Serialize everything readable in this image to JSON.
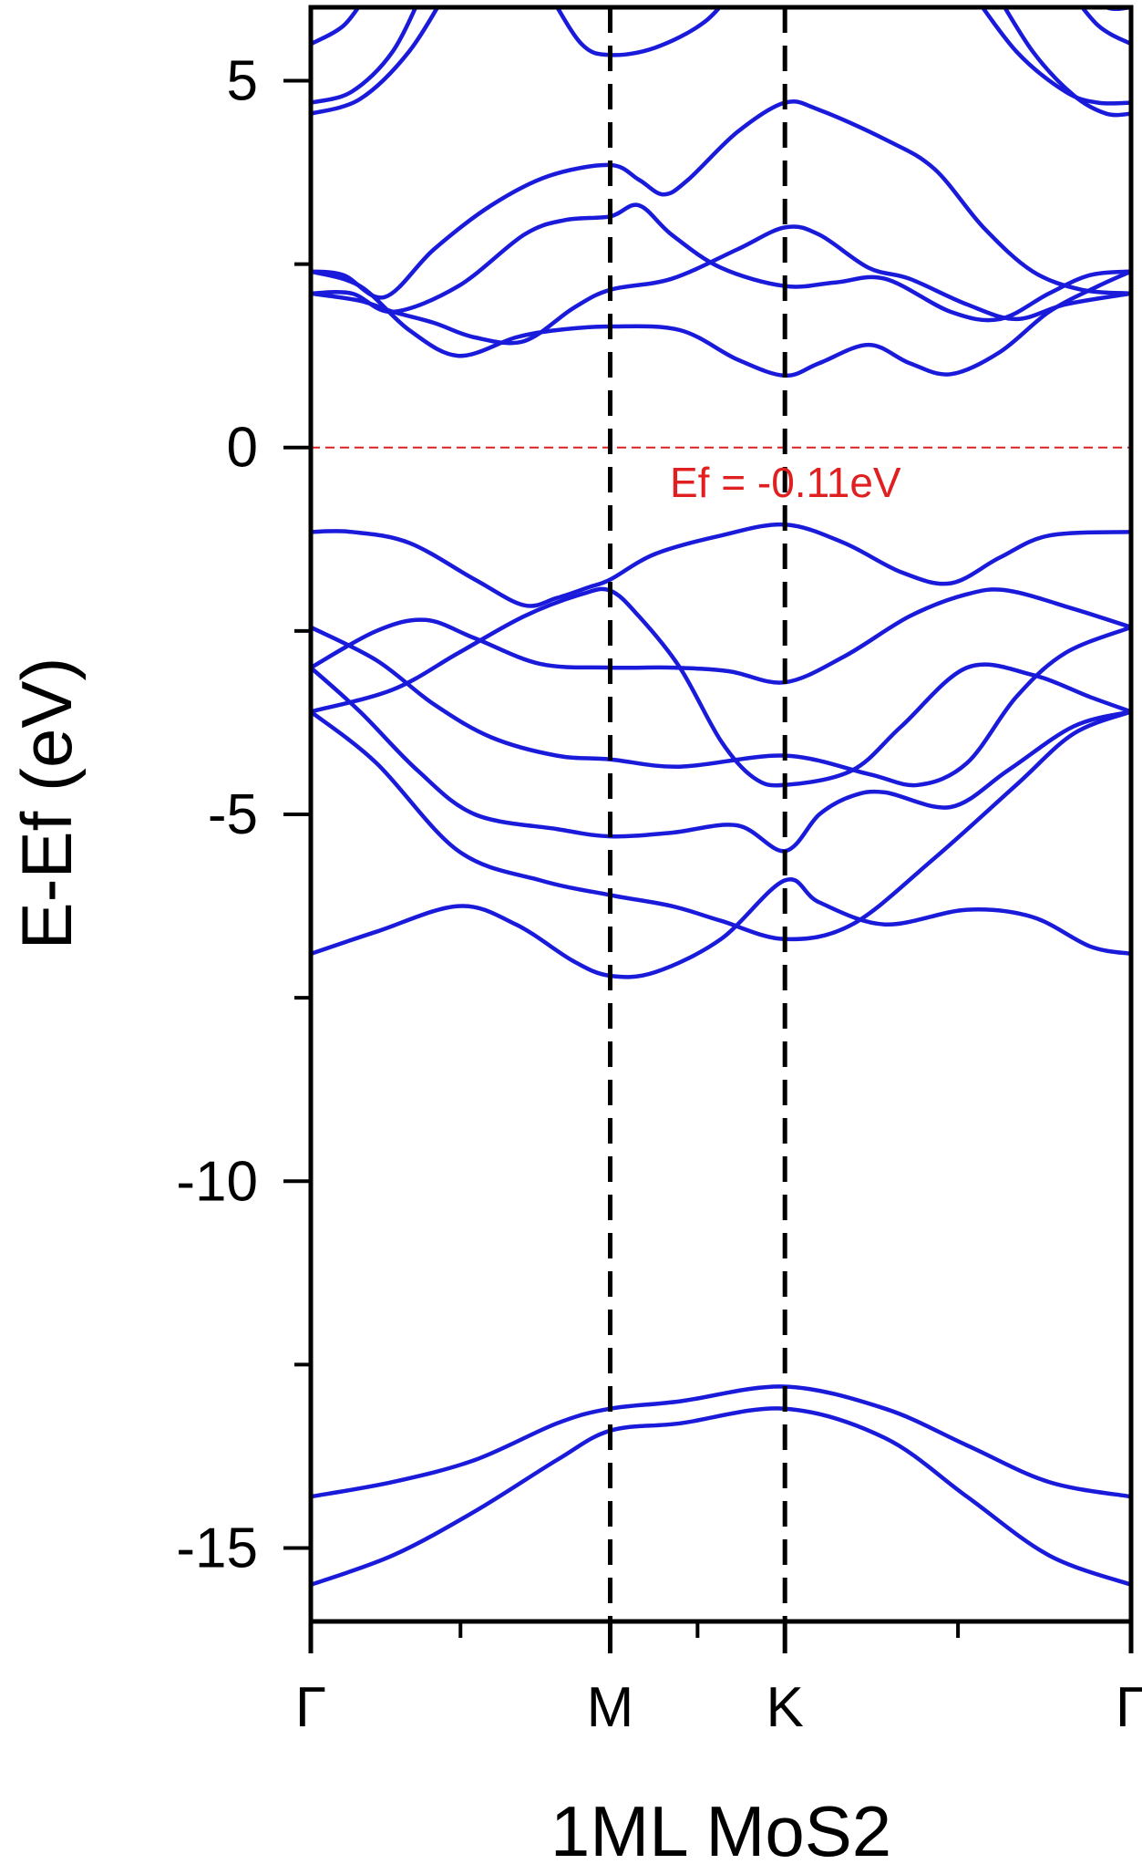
{
  "chart_data": {
    "type": "line",
    "title": "",
    "xlabel": "1ML MoS2",
    "ylabel": "E-Ef (eV)",
    "ylim": [
      -16,
      6
    ],
    "yticks": [
      5,
      0,
      -5,
      -10,
      -15
    ],
    "ytick_labels": [
      "5",
      "0",
      "-5",
      "-10",
      "-15"
    ],
    "x_path": [
      "Γ",
      "M",
      "K",
      "Γ"
    ],
    "x_path_positions": [
      0,
      0.365,
      0.578,
      1
    ],
    "band_color": "#1a1adb",
    "fermi_line": {
      "y": 0,
      "color": "#e02020"
    },
    "fermi_label": "Ef = -0.11eV",
    "grid": false,
    "series": [
      {
        "points": [
          [
            0,
            -15.5
          ],
          [
            0.1,
            -15.1
          ],
          [
            0.2,
            -14.5
          ],
          [
            0.3,
            -13.8
          ],
          [
            0.365,
            -13.4
          ],
          [
            0.45,
            -13.3
          ],
          [
            0.578,
            -13.1
          ],
          [
            0.7,
            -13.5
          ],
          [
            0.8,
            -14.3
          ],
          [
            0.9,
            -15.1
          ],
          [
            1,
            -15.5
          ]
        ]
      },
      {
        "points": [
          [
            0,
            -14.3
          ],
          [
            0.1,
            -14.1
          ],
          [
            0.2,
            -13.8
          ],
          [
            0.3,
            -13.3
          ],
          [
            0.365,
            -13.1
          ],
          [
            0.45,
            -13.0
          ],
          [
            0.578,
            -12.8
          ],
          [
            0.7,
            -13.1
          ],
          [
            0.8,
            -13.6
          ],
          [
            0.9,
            -14.1
          ],
          [
            1,
            -14.3
          ]
        ]
      },
      {
        "points": [
          [
            0,
            -6.9
          ],
          [
            0.08,
            -6.6
          ],
          [
            0.18,
            -6.25
          ],
          [
            0.25,
            -6.5
          ],
          [
            0.32,
            -7.0
          ],
          [
            0.365,
            -7.2
          ],
          [
            0.42,
            -7.15
          ],
          [
            0.5,
            -6.7
          ],
          [
            0.578,
            -5.9
          ],
          [
            0.62,
            -6.2
          ],
          [
            0.7,
            -6.5
          ],
          [
            0.8,
            -6.3
          ],
          [
            0.88,
            -6.4
          ],
          [
            0.95,
            -6.8
          ],
          [
            1,
            -6.9
          ]
        ]
      },
      {
        "points": [
          [
            0,
            -3.6
          ],
          [
            0.08,
            -4.3
          ],
          [
            0.18,
            -5.5
          ],
          [
            0.28,
            -5.9
          ],
          [
            0.365,
            -6.1
          ],
          [
            0.44,
            -6.25
          ],
          [
            0.5,
            -6.45
          ],
          [
            0.578,
            -6.7
          ],
          [
            0.66,
            -6.5
          ],
          [
            0.76,
            -5.6
          ],
          [
            0.86,
            -4.6
          ],
          [
            0.93,
            -3.9
          ],
          [
            1,
            -3.6
          ]
        ]
      },
      {
        "points": [
          [
            0,
            -3.0
          ],
          [
            0.06,
            -3.6
          ],
          [
            0.13,
            -4.4
          ],
          [
            0.2,
            -5.0
          ],
          [
            0.3,
            -5.2
          ],
          [
            0.365,
            -5.3
          ],
          [
            0.44,
            -5.25
          ],
          [
            0.52,
            -5.15
          ],
          [
            0.578,
            -5.5
          ],
          [
            0.62,
            -5.0
          ],
          [
            0.66,
            -4.75
          ],
          [
            0.7,
            -4.7
          ],
          [
            0.78,
            -4.9
          ],
          [
            0.85,
            -4.4
          ],
          [
            0.93,
            -3.8
          ],
          [
            1,
            -3.6
          ]
        ]
      },
      {
        "points": [
          [
            0,
            -3.6
          ],
          [
            0.1,
            -3.3
          ],
          [
            0.18,
            -2.8
          ],
          [
            0.26,
            -2.3
          ],
          [
            0.33,
            -2.0
          ],
          [
            0.365,
            -1.95
          ],
          [
            0.4,
            -2.3
          ],
          [
            0.45,
            -3.0
          ],
          [
            0.5,
            -4.0
          ],
          [
            0.54,
            -4.5
          ],
          [
            0.578,
            -4.6
          ],
          [
            0.66,
            -4.4
          ],
          [
            0.72,
            -3.8
          ],
          [
            0.8,
            -3.0
          ],
          [
            0.88,
            -3.1
          ],
          [
            0.95,
            -3.4
          ],
          [
            1,
            -3.6
          ]
        ]
      },
      {
        "points": [
          [
            0,
            -2.45
          ],
          [
            0.08,
            -2.9
          ],
          [
            0.15,
            -3.5
          ],
          [
            0.22,
            -3.95
          ],
          [
            0.3,
            -4.2
          ],
          [
            0.365,
            -4.25
          ],
          [
            0.45,
            -4.35
          ],
          [
            0.578,
            -4.2
          ],
          [
            0.68,
            -4.45
          ],
          [
            0.74,
            -4.6
          ],
          [
            0.8,
            -4.3
          ],
          [
            0.86,
            -3.4
          ],
          [
            0.92,
            -2.8
          ],
          [
            1,
            -2.45
          ]
        ]
      },
      {
        "points": [
          [
            0,
            -3.0
          ],
          [
            0.08,
            -2.5
          ],
          [
            0.14,
            -2.35
          ],
          [
            0.2,
            -2.6
          ],
          [
            0.28,
            -2.95
          ],
          [
            0.365,
            -3.0
          ],
          [
            0.44,
            -3.0
          ],
          [
            0.51,
            -3.05
          ],
          [
            0.578,
            -3.2
          ],
          [
            0.65,
            -2.85
          ],
          [
            0.73,
            -2.3
          ],
          [
            0.8,
            -2.0
          ],
          [
            0.85,
            -1.95
          ],
          [
            0.93,
            -2.2
          ],
          [
            1,
            -2.45
          ]
        ]
      },
      {
        "points": [
          [
            0,
            -1.15
          ],
          [
            0.05,
            -1.15
          ],
          [
            0.12,
            -1.3
          ],
          [
            0.2,
            -1.8
          ],
          [
            0.26,
            -2.15
          ],
          [
            0.3,
            -2.05
          ],
          [
            0.34,
            -1.9
          ],
          [
            0.365,
            -1.8
          ],
          [
            0.42,
            -1.45
          ],
          [
            0.5,
            -1.2
          ],
          [
            0.578,
            -1.05
          ],
          [
            0.65,
            -1.3
          ],
          [
            0.72,
            -1.7
          ],
          [
            0.78,
            -1.85
          ],
          [
            0.84,
            -1.5
          ],
          [
            0.9,
            -1.2
          ],
          [
            1,
            -1.15
          ]
        ]
      },
      {
        "points": [
          [
            0,
            2.4
          ],
          [
            0.06,
            2.2
          ],
          [
            0.12,
            1.6
          ],
          [
            0.18,
            1.25
          ],
          [
            0.25,
            1.5
          ],
          [
            0.3,
            1.6
          ],
          [
            0.365,
            1.65
          ],
          [
            0.45,
            1.6
          ],
          [
            0.52,
            1.2
          ],
          [
            0.578,
            0.98
          ],
          [
            0.62,
            1.15
          ],
          [
            0.68,
            1.4
          ],
          [
            0.73,
            1.15
          ],
          [
            0.78,
            1.0
          ],
          [
            0.84,
            1.3
          ],
          [
            0.9,
            1.85
          ],
          [
            0.96,
            2.2
          ],
          [
            1,
            2.4
          ]
        ]
      },
      {
        "points": [
          [
            0,
            2.1
          ],
          [
            0.06,
            2.0
          ],
          [
            0.1,
            1.85
          ],
          [
            0.15,
            1.7
          ],
          [
            0.2,
            1.5
          ],
          [
            0.26,
            1.45
          ],
          [
            0.32,
            1.9
          ],
          [
            0.365,
            2.15
          ],
          [
            0.44,
            2.3
          ],
          [
            0.52,
            2.7
          ],
          [
            0.578,
            3.0
          ],
          [
            0.62,
            2.9
          ],
          [
            0.68,
            2.45
          ],
          [
            0.73,
            2.3
          ],
          [
            0.8,
            1.95
          ],
          [
            0.86,
            1.75
          ],
          [
            0.92,
            1.95
          ],
          [
            1,
            2.1
          ]
        ]
      },
      {
        "points": [
          [
            0,
            2.1
          ],
          [
            0.05,
            2.1
          ],
          [
            0.1,
            1.85
          ],
          [
            0.18,
            2.2
          ],
          [
            0.26,
            2.9
          ],
          [
            0.31,
            3.1
          ],
          [
            0.365,
            3.15
          ],
          [
            0.4,
            3.3
          ],
          [
            0.44,
            2.9
          ],
          [
            0.5,
            2.45
          ],
          [
            0.578,
            2.2
          ],
          [
            0.64,
            2.25
          ],
          [
            0.7,
            2.3
          ],
          [
            0.78,
            1.85
          ],
          [
            0.84,
            1.75
          ],
          [
            0.9,
            2.1
          ],
          [
            0.95,
            2.35
          ],
          [
            1,
            2.4
          ]
        ]
      },
      {
        "points": [
          [
            0,
            2.4
          ],
          [
            0.04,
            2.35
          ],
          [
            0.09,
            2.05
          ],
          [
            0.15,
            2.7
          ],
          [
            0.22,
            3.3
          ],
          [
            0.29,
            3.7
          ],
          [
            0.365,
            3.85
          ],
          [
            0.4,
            3.65
          ],
          [
            0.43,
            3.45
          ],
          [
            0.46,
            3.65
          ],
          [
            0.52,
            4.3
          ],
          [
            0.578,
            4.7
          ],
          [
            0.62,
            4.6
          ],
          [
            0.7,
            4.2
          ],
          [
            0.76,
            3.8
          ],
          [
            0.82,
            3.0
          ],
          [
            0.88,
            2.4
          ],
          [
            0.94,
            2.15
          ],
          [
            1,
            2.1
          ]
        ]
      },
      {
        "points": [
          [
            0,
            4.55
          ],
          [
            0.06,
            4.75
          ],
          [
            0.12,
            5.4
          ],
          [
            0.17,
            6.3
          ]
        ]
      },
      {
        "points": [
          [
            0,
            4.7
          ],
          [
            0.05,
            4.85
          ],
          [
            0.1,
            5.4
          ],
          [
            0.14,
            6.3
          ]
        ]
      },
      {
        "points": [
          [
            0,
            5.5
          ],
          [
            0.04,
            5.75
          ],
          [
            0.07,
            6.2
          ]
        ]
      },
      {
        "points": [
          [
            0,
            6.0
          ],
          [
            0.04,
            6.05
          ],
          [
            0.06,
            6.3
          ]
        ]
      },
      {
        "points": [
          [
            0.29,
            6.2
          ],
          [
            0.33,
            5.5
          ],
          [
            0.365,
            5.35
          ],
          [
            0.42,
            5.45
          ],
          [
            0.48,
            5.8
          ],
          [
            0.52,
            6.3
          ]
        ]
      },
      {
        "points": [
          [
            0.8,
            6.3
          ],
          [
            0.86,
            5.4
          ],
          [
            0.92,
            4.85
          ],
          [
            0.96,
            4.7
          ],
          [
            1,
            4.7
          ]
        ]
      },
      {
        "points": [
          [
            0.83,
            6.3
          ],
          [
            0.88,
            5.4
          ],
          [
            0.93,
            4.8
          ],
          [
            0.97,
            4.55
          ],
          [
            1,
            4.55
          ]
        ]
      },
      {
        "points": [
          [
            0.92,
            6.3
          ],
          [
            0.96,
            5.75
          ],
          [
            1,
            5.5
          ]
        ]
      },
      {
        "points": [
          [
            0.94,
            6.3
          ],
          [
            0.97,
            6.0
          ],
          [
            1,
            6.0
          ]
        ]
      }
    ]
  }
}
